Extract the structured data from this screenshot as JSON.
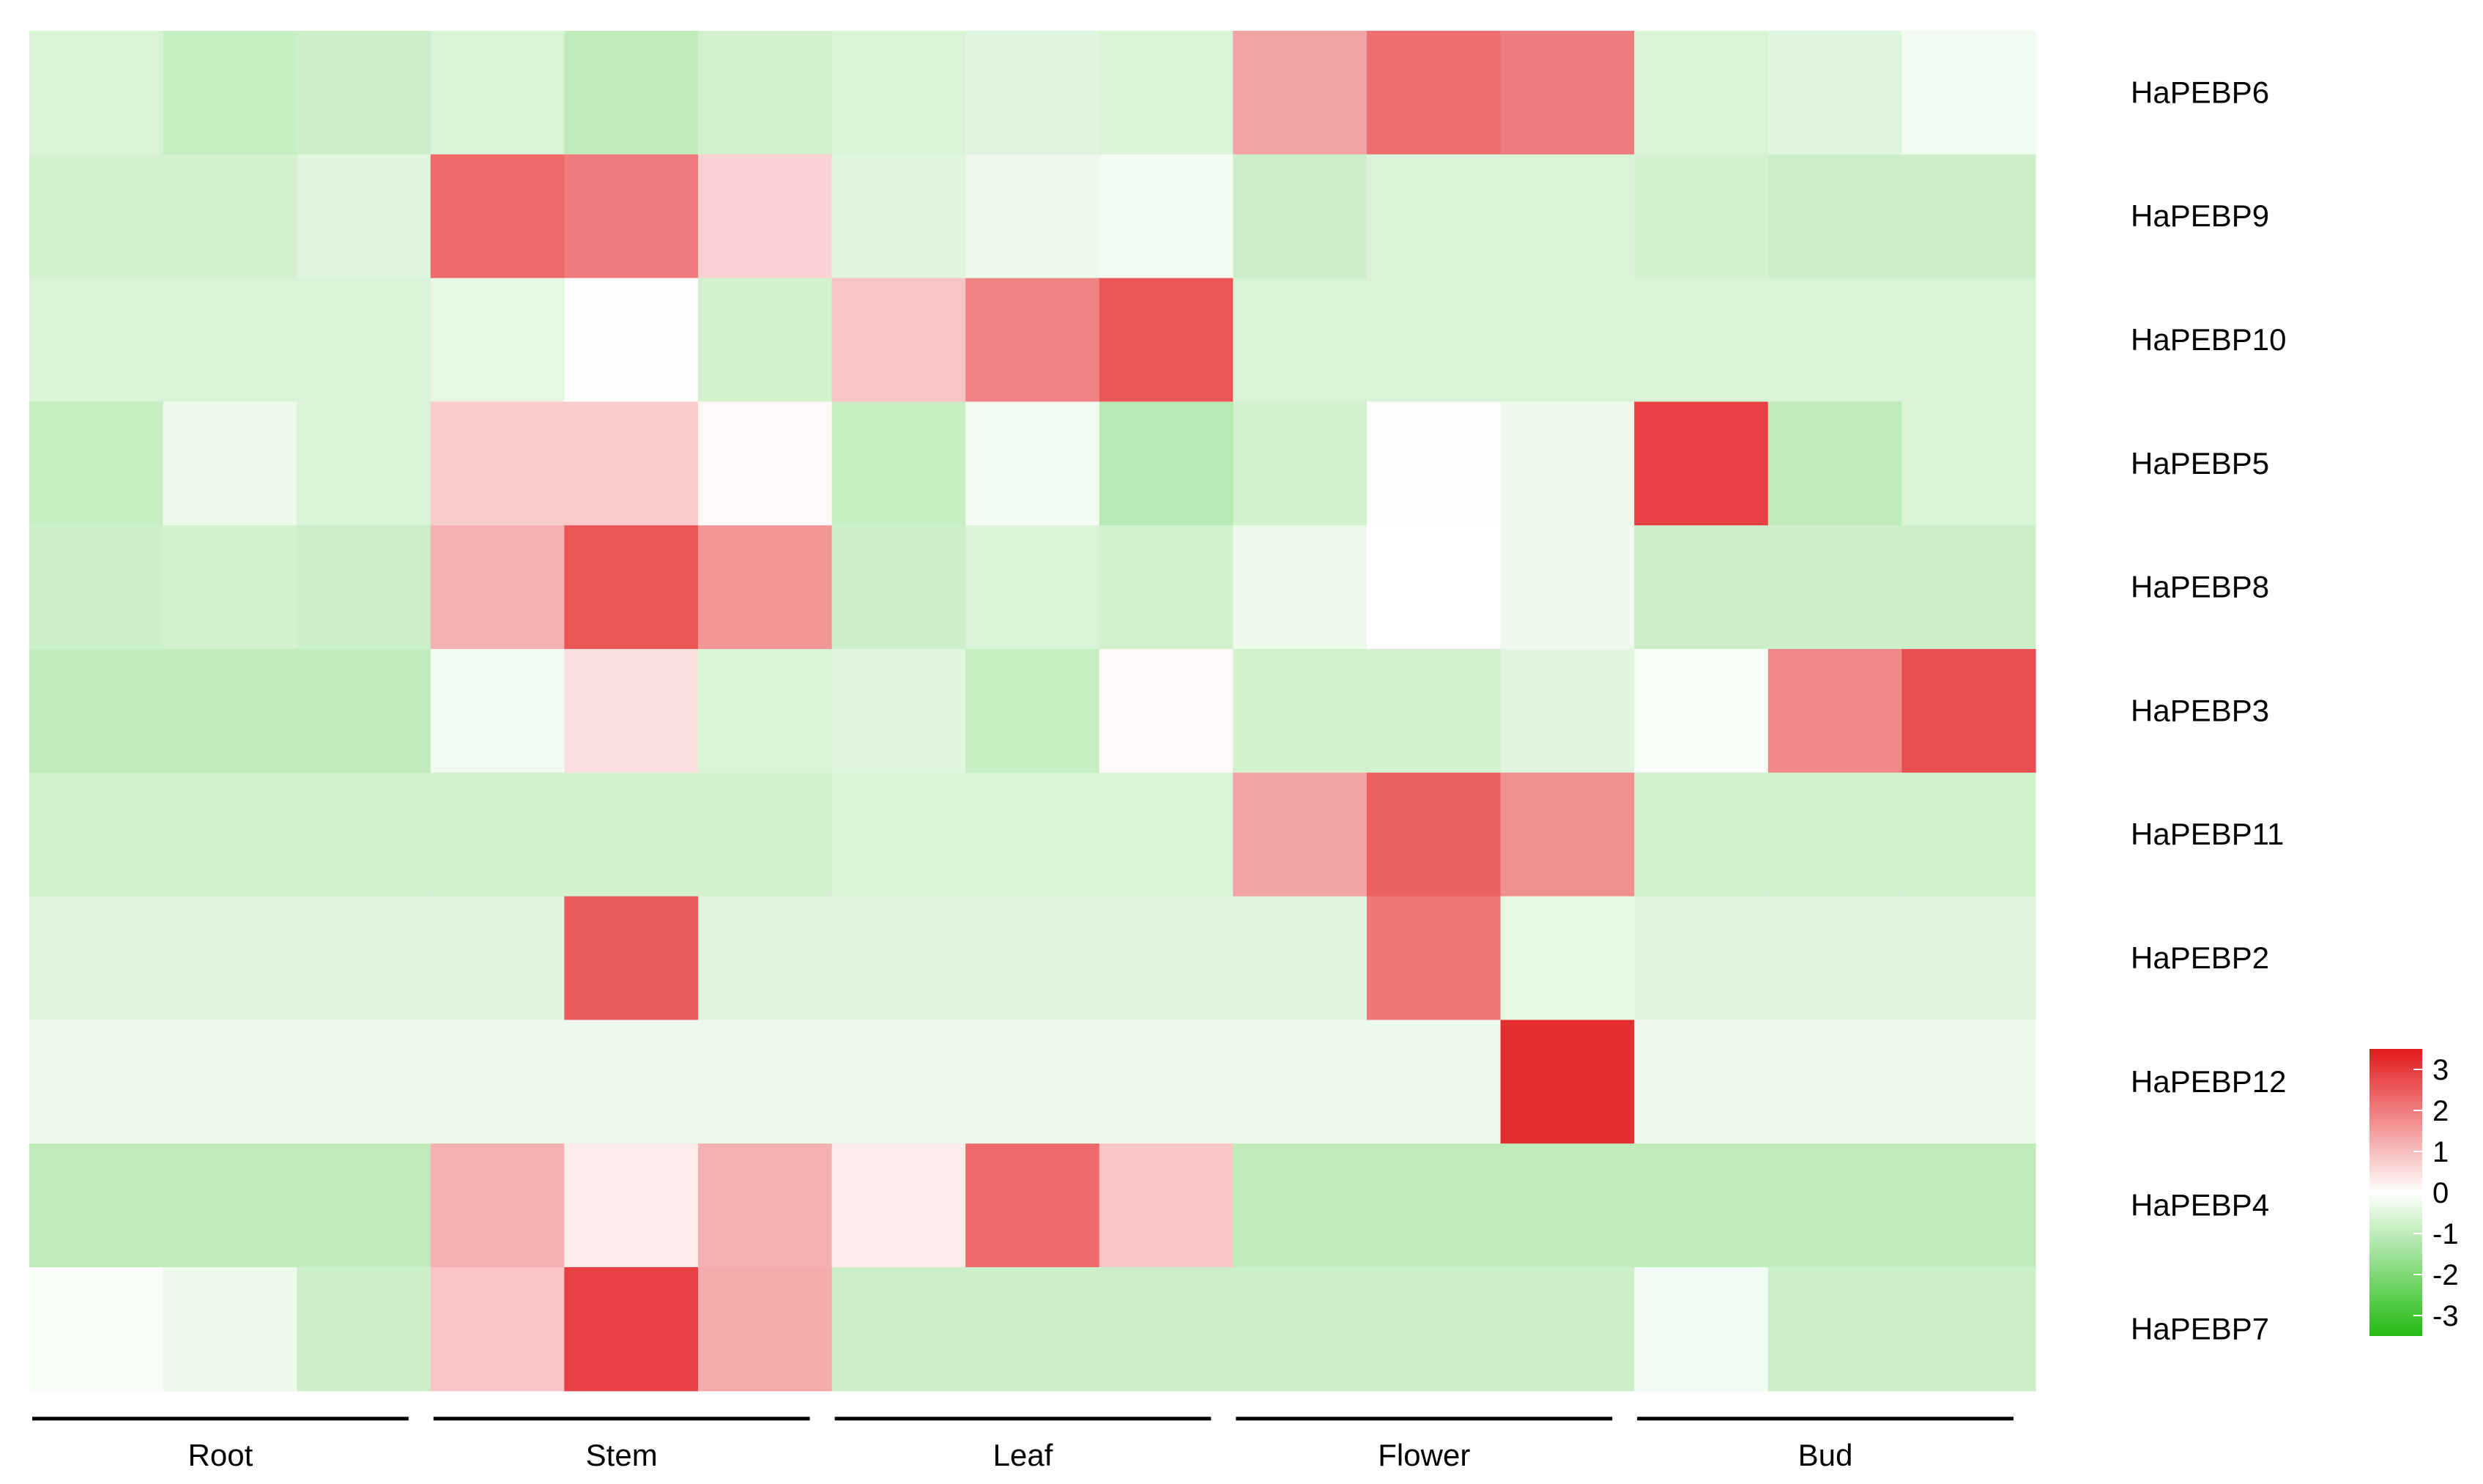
{
  "chart_data": {
    "type": "heatmap",
    "rows": [
      "HaPEBP6",
      "HaPEBP9",
      "HaPEBP10",
      "HaPEBP5",
      "HaPEBP8",
      "HaPEBP3",
      "HaPEBP11",
      "HaPEBP2",
      "HaPEBP12",
      "HaPEBP4",
      "HaPEBP7"
    ],
    "groups": [
      "Root",
      "Stem",
      "Leaf",
      "Flower",
      "Bud"
    ],
    "replicates_per_group": 3,
    "values": [
      [
        -0.6,
        -0.9,
        -0.8,
        -0.6,
        -1.0,
        -0.7,
        -0.6,
        -0.5,
        -0.6,
        1.4,
        2.2,
        2.0,
        -0.6,
        -0.5,
        -0.2
      ],
      [
        -0.7,
        -0.7,
        -0.5,
        2.3,
        2.0,
        0.7,
        -0.5,
        -0.3,
        -0.2,
        -0.8,
        -0.6,
        -0.6,
        -0.7,
        -0.8,
        -0.8
      ],
      [
        -0.6,
        -0.6,
        -0.6,
        -0.4,
        -0.05,
        -0.7,
        0.9,
        1.9,
        2.6,
        -0.6,
        -0.6,
        -0.6,
        -0.6,
        -0.6,
        -0.6
      ],
      [
        -0.9,
        -0.3,
        -0.6,
        0.8,
        0.8,
        0.1,
        -0.9,
        -0.2,
        -1.1,
        -0.7,
        0.05,
        -0.3,
        2.9,
        -1.0,
        -0.6
      ],
      [
        -0.8,
        -0.7,
        -0.8,
        1.2,
        2.6,
        1.6,
        -0.8,
        -0.6,
        -0.7,
        -0.3,
        0.0,
        -0.3,
        -0.8,
        -0.8,
        -0.8
      ],
      [
        -1.0,
        -1.0,
        -1.0,
        -0.2,
        0.5,
        -0.6,
        -0.5,
        -0.9,
        0.1,
        -0.7,
        -0.7,
        -0.5,
        -0.1,
        1.8,
        2.7
      ],
      [
        -0.7,
        -0.7,
        -0.7,
        -0.7,
        -0.7,
        -0.7,
        -0.6,
        -0.6,
        -0.6,
        1.4,
        2.4,
        1.7,
        -0.7,
        -0.7,
        -0.7
      ],
      [
        -0.5,
        -0.5,
        -0.5,
        -0.5,
        2.5,
        -0.5,
        -0.5,
        -0.5,
        -0.5,
        -0.5,
        2.1,
        -0.4,
        -0.5,
        -0.5,
        -0.5
      ],
      [
        -0.3,
        -0.3,
        -0.3,
        -0.3,
        -0.3,
        -0.3,
        -0.3,
        -0.3,
        -0.3,
        -0.3,
        -0.3,
        3.2,
        -0.3,
        -0.3,
        -0.3
      ],
      [
        -1.0,
        -1.0,
        -1.0,
        1.2,
        0.3,
        1.2,
        0.3,
        2.3,
        0.9,
        -1.0,
        -1.0,
        -1.0,
        -1.0,
        -1.0,
        -1.0
      ],
      [
        -0.1,
        -0.3,
        -0.8,
        0.9,
        2.9,
        1.3,
        -0.8,
        -0.8,
        -0.8,
        -0.8,
        -0.8,
        -0.8,
        -0.2,
        -0.8,
        -0.8
      ]
    ],
    "colorbar": {
      "min": -3.5,
      "max": 3.5,
      "ticks": [
        3,
        2,
        1,
        0,
        -1,
        -2,
        -3
      ],
      "tick_labels": [
        "3",
        "2",
        "1",
        "0",
        "-1",
        "-2",
        "-3"
      ],
      "color_low": "#22bb11",
      "color_mid": "#ffffff",
      "color_high": "#e31a1c"
    }
  }
}
